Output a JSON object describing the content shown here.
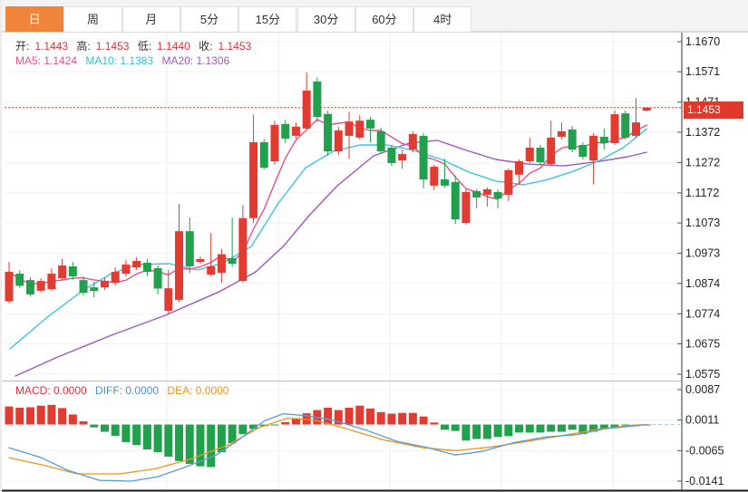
{
  "tabs": {
    "items": [
      {
        "label": "日",
        "active": true
      },
      {
        "label": "周",
        "active": false
      },
      {
        "label": "月",
        "active": false
      },
      {
        "label": "5分",
        "active": false
      },
      {
        "label": "15分",
        "active": false
      },
      {
        "label": "30分",
        "active": false
      },
      {
        "label": "60分",
        "active": false
      },
      {
        "label": "4时",
        "active": false
      }
    ]
  },
  "quote": {
    "open_l": "开:",
    "open_v": "1.1443",
    "high_l": "高:",
    "high_v": "1.1453",
    "low_l": "低:",
    "low_v": "1.1440",
    "close_l": "收:",
    "close_v": "1.1453"
  },
  "ma_legend": {
    "ma5": "MA5: 1.1424",
    "ma10": "MA10: 1.1383",
    "ma20": "MA20: 1.1306"
  },
  "macd_legend": {
    "macd": "MACD: 0.0000",
    "diff": "DIFF: 0.0000",
    "dea": "DEA: 0.0000"
  },
  "current_price_label": "1.1453",
  "chart_data": {
    "type": "candlestick",
    "title": "",
    "price_axis_labels": [
      "1.1670",
      "1.1571",
      "1.1471",
      "1.1372",
      "1.1272",
      "1.1172",
      "1.1073",
      "1.0973",
      "1.0874",
      "1.0774",
      "1.0675",
      "1.0575"
    ],
    "price_axis_values": [
      1.167,
      1.1571,
      1.1471,
      1.1372,
      1.1272,
      1.1172,
      1.1073,
      1.0973,
      1.0874,
      1.0774,
      1.0675,
      1.0575
    ],
    "current_price": 1.1453,
    "candles": [
      [
        1.0815,
        1.0945,
        1.0808,
        1.0912
      ],
      [
        1.0906,
        1.0918,
        1.0858,
        1.0866
      ],
      [
        1.0885,
        1.0894,
        1.083,
        1.0838
      ],
      [
        1.085,
        1.0891,
        1.0844,
        1.0882
      ],
      [
        1.0855,
        1.0924,
        1.085,
        1.0906
      ],
      [
        1.0891,
        1.0954,
        1.0885,
        1.0933
      ],
      [
        1.093,
        1.0945,
        1.0886,
        1.0897
      ],
      [
        1.0885,
        1.0897,
        1.0835,
        1.0843
      ],
      [
        1.0861,
        1.0879,
        1.0828,
        1.0849
      ],
      [
        1.0861,
        1.0894,
        1.0852,
        1.0882
      ],
      [
        1.0876,
        1.0927,
        1.0867,
        1.0912
      ],
      [
        1.0906,
        1.0951,
        1.0897,
        1.0936
      ],
      [
        1.0927,
        1.096,
        1.0918,
        1.0948
      ],
      [
        1.0942,
        1.0954,
        1.0898,
        1.0912
      ],
      [
        1.0924,
        1.0933,
        1.0838,
        1.0857
      ],
      [
        1.0784,
        1.0918,
        1.0775,
        1.0858
      ],
      [
        1.082,
        1.1136,
        1.0812,
        1.1046
      ],
      [
        1.1046,
        1.1091,
        1.0908,
        1.093
      ],
      [
        1.0945,
        1.0962,
        1.0938,
        1.0954
      ],
      [
        1.0903,
        1.104,
        1.0897,
        1.093
      ],
      [
        1.0909,
        1.0988,
        1.0876,
        1.097
      ],
      [
        1.0957,
        1.1091,
        1.0928,
        1.0939
      ],
      [
        1.0882,
        1.1131,
        1.0876,
        1.1089
      ],
      [
        1.1089,
        1.143,
        1.1073,
        1.1339
      ],
      [
        1.1339,
        1.1349,
        1.1249,
        1.1255
      ],
      [
        1.1276,
        1.141,
        1.1264,
        1.1396
      ],
      [
        1.1399,
        1.1413,
        1.1336,
        1.1351
      ],
      [
        1.136,
        1.1404,
        1.1351,
        1.139
      ],
      [
        1.1384,
        1.1569,
        1.1381,
        1.1509
      ],
      [
        1.1539,
        1.1552,
        1.1405,
        1.1422
      ],
      [
        1.1432,
        1.1443,
        1.1294,
        1.1309
      ],
      [
        1.1309,
        1.139,
        1.1297,
        1.1378
      ],
      [
        1.136,
        1.144,
        1.1285,
        1.1407
      ],
      [
        1.1354,
        1.1428,
        1.1348,
        1.141
      ],
      [
        1.1413,
        1.1422,
        1.1339,
        1.1384
      ],
      [
        1.1375,
        1.1387,
        1.13,
        1.1309
      ],
      [
        1.1321,
        1.133,
        1.1261,
        1.127
      ],
      [
        1.1279,
        1.1315,
        1.1252,
        1.13
      ],
      [
        1.1315,
        1.1375,
        1.1306,
        1.1366
      ],
      [
        1.136,
        1.1369,
        1.1187,
        1.1216
      ],
      [
        1.1196,
        1.1264,
        1.1181,
        1.1258
      ],
      [
        1.1217,
        1.1285,
        1.119,
        1.1196
      ],
      [
        1.1208,
        1.123,
        1.107,
        1.1085
      ],
      [
        1.1073,
        1.1184,
        1.1067,
        1.1175
      ],
      [
        1.1178,
        1.1184,
        1.1121,
        1.1157
      ],
      [
        1.1166,
        1.119,
        1.1127,
        1.1184
      ],
      [
        1.1175,
        1.1184,
        1.1121,
        1.1154
      ],
      [
        1.1166,
        1.1252,
        1.1145,
        1.1247
      ],
      [
        1.1232,
        1.1282,
        1.1199,
        1.1276
      ],
      [
        1.1276,
        1.1354,
        1.127,
        1.1321
      ],
      [
        1.1321,
        1.133,
        1.1264,
        1.1273
      ],
      [
        1.1267,
        1.141,
        1.1261,
        1.1354
      ],
      [
        1.1357,
        1.1404,
        1.1348,
        1.1375
      ],
      [
        1.1381,
        1.1393,
        1.1306,
        1.1315
      ],
      [
        1.133,
        1.1339,
        1.1282,
        1.1291
      ],
      [
        1.1279,
        1.1369,
        1.12,
        1.136
      ],
      [
        1.1357,
        1.1384,
        1.1315,
        1.1336
      ],
      [
        1.1336,
        1.1443,
        1.133,
        1.1431
      ],
      [
        1.1434,
        1.1443,
        1.1348,
        1.1354
      ],
      [
        1.136,
        1.1484,
        1.1354,
        1.1404
      ],
      [
        1.1443,
        1.1453,
        1.144,
        1.1453
      ]
    ],
    "ma10_line": [
      [
        0.1,
        1.0659
      ],
      [
        3.6,
        1.0763
      ],
      [
        7.0,
        1.0852
      ],
      [
        9.6,
        1.0906
      ],
      [
        12.1,
        1.0936
      ],
      [
        15.1,
        1.0939
      ],
      [
        17.7,
        1.0918
      ],
      [
        20.2,
        1.0942
      ],
      [
        22.8,
        1.0996
      ],
      [
        25.3,
        1.1136
      ],
      [
        27.9,
        1.1255
      ],
      [
        30.5,
        1.1309
      ],
      [
        33.0,
        1.133
      ],
      [
        35.6,
        1.133
      ],
      [
        38.1,
        1.1312
      ],
      [
        40.7,
        1.1282
      ],
      [
        43.3,
        1.124
      ],
      [
        45.8,
        1.1211
      ],
      [
        48.4,
        1.1199
      ],
      [
        50.5,
        1.1214
      ],
      [
        53.1,
        1.1243
      ],
      [
        55.6,
        1.1279
      ],
      [
        57.8,
        1.1321
      ],
      [
        60.0,
        1.1383
      ]
    ],
    "ma20_line": [
      [
        0.6,
        1.0569
      ],
      [
        4.4,
        1.0629
      ],
      [
        9.6,
        1.0703
      ],
      [
        14.7,
        1.0769
      ],
      [
        19.8,
        1.0847
      ],
      [
        23.2,
        1.0912
      ],
      [
        25.8,
        1.0996
      ],
      [
        28.3,
        1.11
      ],
      [
        30.9,
        1.1196
      ],
      [
        34.3,
        1.1294
      ],
      [
        37.7,
        1.1336
      ],
      [
        40.3,
        1.1345
      ],
      [
        42.8,
        1.1315
      ],
      [
        45.8,
        1.1282
      ],
      [
        48.8,
        1.1267
      ],
      [
        52.2,
        1.1261
      ],
      [
        55.6,
        1.1276
      ],
      [
        58.2,
        1.1291
      ],
      [
        60.0,
        1.1306
      ]
    ],
    "macd": {
      "axis_labels": [
        "0.0087",
        "0.0011",
        "-0.0065",
        "-0.0141"
      ],
      "axis_values": [
        0.0087,
        0.0011,
        -0.0065,
        -0.0141
      ],
      "histogram": [
        0.0045,
        0.0042,
        0.0043,
        0.0047,
        0.0049,
        0.0041,
        0.0025,
        0.0008,
        -0.0007,
        -0.0018,
        -0.0028,
        -0.0044,
        -0.0051,
        -0.0062,
        -0.0069,
        -0.008,
        -0.0091,
        -0.0098,
        -0.0104,
        -0.0106,
        -0.0069,
        -0.0046,
        -0.0024,
        -0.0011,
        -0.0004,
        -0.0002,
        0.0006,
        0.0016,
        0.0028,
        0.0036,
        0.0042,
        0.0036,
        0.0042,
        0.0047,
        0.004,
        0.0031,
        0.0027,
        0.0029,
        0.0029,
        0.002,
        0.0005,
        -0.0013,
        -0.0016,
        -0.004,
        -0.0036,
        -0.0036,
        -0.0031,
        -0.0029,
        -0.002,
        -0.002,
        -0.002,
        -0.0018,
        -0.0018,
        -0.0013,
        -0.0024,
        -0.0018,
        -0.0011,
        -0.0007,
        -0.0002,
        -0.0004,
        0.0
      ],
      "diff_line": [
        [
          0,
          -0.0058
        ],
        [
          3,
          -0.0082
        ],
        [
          5.5,
          -0.0114
        ],
        [
          8.5,
          -0.0139
        ],
        [
          11.5,
          -0.0141
        ],
        [
          14,
          -0.013
        ],
        [
          16.5,
          -0.0107
        ],
        [
          19.5,
          -0.0076
        ],
        [
          21.5,
          -0.004
        ],
        [
          24,
          0.0009
        ],
        [
          25.8,
          0.0027
        ],
        [
          28,
          0.0022
        ],
        [
          30.5,
          0.0011
        ],
        [
          33.5,
          -0.0013
        ],
        [
          36.5,
          -0.0042
        ],
        [
          39.5,
          -0.0058
        ],
        [
          42,
          -0.0076
        ],
        [
          44.5,
          -0.0067
        ],
        [
          47.5,
          -0.0045
        ],
        [
          50.5,
          -0.0031
        ],
        [
          53.5,
          -0.0025
        ],
        [
          56,
          -0.0011
        ],
        [
          58.6,
          -0.0004
        ],
        [
          60,
          0.0
        ]
      ],
      "dea_line": [
        [
          0,
          -0.0083
        ],
        [
          3.2,
          -0.0101
        ],
        [
          6.4,
          -0.0123
        ],
        [
          10.4,
          -0.0123
        ],
        [
          13.8,
          -0.011
        ],
        [
          17.2,
          -0.0085
        ],
        [
          20.6,
          -0.0051
        ],
        [
          23.6,
          -0.0007
        ],
        [
          26.2,
          0.0016
        ],
        [
          28.8,
          0.0011
        ],
        [
          31.3,
          -0.0007
        ],
        [
          35.2,
          -0.0038
        ],
        [
          39,
          -0.0058
        ],
        [
          42,
          -0.0065
        ],
        [
          45.4,
          -0.0056
        ],
        [
          48.8,
          -0.0042
        ],
        [
          52.2,
          -0.0027
        ],
        [
          55.6,
          -0.0011
        ],
        [
          58.6,
          -0.0002
        ],
        [
          60,
          0.0
        ]
      ]
    },
    "colors": {
      "up": "#e23b32",
      "down": "#21a14c",
      "ma5": "#e8508c",
      "ma10": "#3fc3e4",
      "ma20": "#9f55c2",
      "diff": "#5b9bd5",
      "dea": "#f0941f",
      "price_line": "#e0392b",
      "badge": "#e0392b",
      "grid": "#f0f2f6",
      "vgrid": "#e9edf3",
      "axis": "#555"
    },
    "legend_position": "top-left",
    "grid": true
  }
}
